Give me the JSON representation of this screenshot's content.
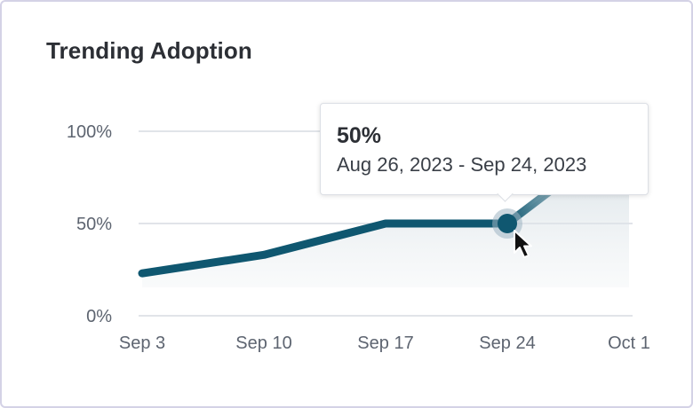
{
  "card": {
    "title": "Trending Adoption"
  },
  "chart_data": {
    "type": "area",
    "title": "",
    "xlabel": "",
    "ylabel": "",
    "categories": [
      "Sep 3",
      "Sep 10",
      "Sep 17",
      "Sep 24",
      "Oct 1"
    ],
    "values": [
      23,
      33,
      50,
      50,
      100
    ],
    "ylim": [
      0,
      100
    ],
    "y_ticks": [
      0,
      50,
      100
    ],
    "y_tick_labels": [
      "0%",
      "50%",
      "100%"
    ],
    "grid": true,
    "highlighted_index": 3,
    "line_color": "#0f5770",
    "fill_color": "#dbe3e8",
    "grid_color": "#cfd4dc"
  },
  "tooltip": {
    "value": "50%",
    "range": "Aug 26, 2023 - Sep 24, 2023"
  },
  "cursor": {
    "icon": "mouse-pointer-icon"
  }
}
